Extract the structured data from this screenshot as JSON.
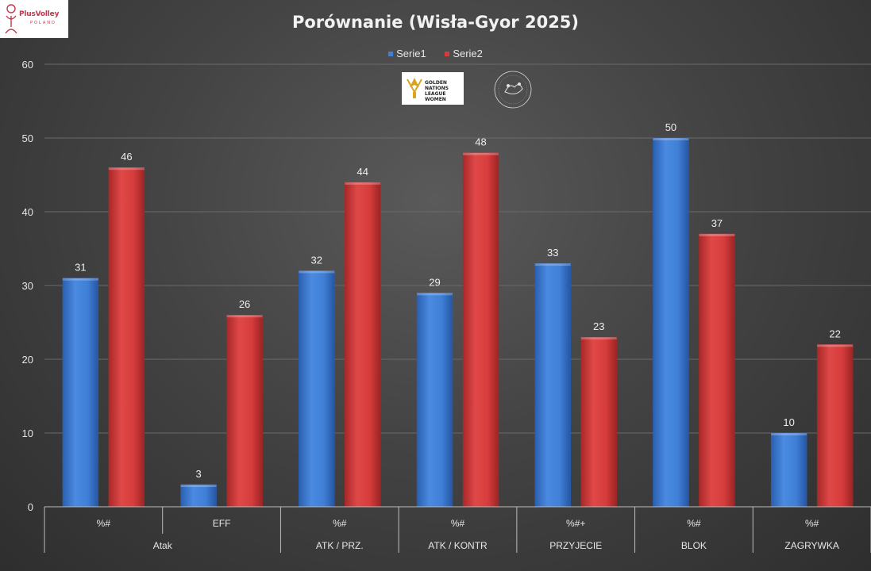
{
  "chart_data": {
    "type": "bar",
    "title": "Porównanie (Wisła-Gyor 2025)",
    "ylim": [
      0,
      60
    ],
    "yticks": [
      0,
      10,
      20,
      30,
      40,
      50,
      60
    ],
    "grid": true,
    "legend_position": "top",
    "categories": [
      {
        "sub": "%#",
        "group": "Atak"
      },
      {
        "sub": "EFF",
        "group": "Atak"
      },
      {
        "sub": "%#",
        "group": "ATK / PRZ."
      },
      {
        "sub": "%#",
        "group": "ATK / KONTR"
      },
      {
        "sub": "%#+",
        "group": "PRZYJECIE"
      },
      {
        "sub": "%#",
        "group": "BLOK"
      },
      {
        "sub": "%#",
        "group": "ZAGRYWKA"
      }
    ],
    "groups": [
      "Atak",
      "ATK / PRZ.",
      "ATK / KONTR",
      "PRZYJECIE",
      "BLOK",
      "ZAGRYWKA"
    ],
    "series": [
      {
        "name": "Serie1",
        "color": "#3f7fd6",
        "values": [
          31,
          3,
          32,
          29,
          33,
          50,
          10
        ]
      },
      {
        "name": "Serie2",
        "color": "#d63c3c",
        "values": [
          46,
          26,
          44,
          48,
          23,
          37,
          22
        ]
      }
    ]
  },
  "logos": {
    "pzps_brand": "PlusVolley",
    "pzps_sub": "POLAND",
    "tournament_text": "GOLDEN NATIONS LEAGUE WOMEN"
  }
}
